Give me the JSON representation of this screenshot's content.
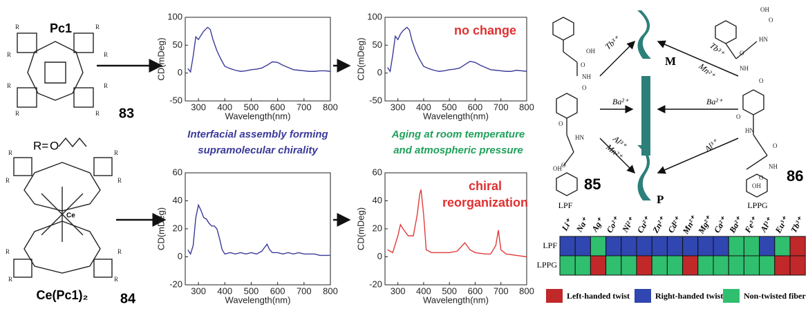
{
  "left": {
    "pc1_label": "Pc1",
    "pc1_number": "83",
    "r_prefix": "R=",
    "r_oxygen": "O",
    "pc1_substituents": [
      "R",
      "R",
      "R",
      "R",
      "R",
      "R",
      "R",
      "R"
    ],
    "ce_label": "Ce(Pc1)₂",
    "ce_number": "84",
    "ce_metal": "Ce",
    "ce_substituents": [
      "R",
      "R",
      "R",
      "R",
      "R",
      "R",
      "R",
      "R"
    ]
  },
  "captions": {
    "assembly": [
      "Interfacial assembly forming",
      "supramolecular chirality"
    ],
    "aging": [
      "Aging at room temperature",
      "and atmospheric pressure"
    ]
  },
  "chart_data": [
    {
      "type": "line",
      "x_label": "Wavelength(nm)",
      "y_label": "CD(mDeg)",
      "xlim": [
        250,
        800
      ],
      "xticks": [
        300,
        400,
        500,
        600,
        700,
        800
      ],
      "ylim": [
        -50,
        100
      ],
      "yticks": [
        -50,
        0,
        50,
        100
      ],
      "series": [
        {
          "color": "#3a3a9a",
          "x": [
            260,
            270,
            280,
            290,
            300,
            310,
            320,
            335,
            345,
            355,
            370,
            385,
            400,
            420,
            440,
            460,
            480,
            500,
            520,
            540,
            560,
            580,
            600,
            620,
            640,
            660,
            680,
            700,
            720,
            740,
            760,
            780,
            800
          ],
          "values": [
            8,
            2,
            30,
            65,
            60,
            68,
            75,
            82,
            78,
            60,
            40,
            25,
            12,
            8,
            5,
            3,
            4,
            6,
            7,
            9,
            14,
            20,
            19,
            14,
            10,
            6,
            5,
            4,
            3,
            3,
            4,
            4,
            3
          ]
        }
      ]
    },
    {
      "type": "line",
      "x_label": "Wavelength(nm)",
      "y_label": "CD(mDeg)",
      "xlim": [
        250,
        800
      ],
      "xticks": [
        300,
        400,
        500,
        600,
        700,
        800
      ],
      "ylim": [
        -50,
        100
      ],
      "yticks": [
        -50,
        0,
        50,
        100
      ],
      "annotation": [
        "no change"
      ],
      "series": [
        {
          "color": "#3a3a9a",
          "x": [
            260,
            270,
            280,
            290,
            300,
            310,
            320,
            335,
            345,
            355,
            370,
            385,
            400,
            420,
            440,
            460,
            480,
            500,
            520,
            540,
            560,
            580,
            600,
            620,
            640,
            660,
            680,
            700,
            720,
            740,
            760,
            780,
            800
          ],
          "values": [
            10,
            3,
            32,
            66,
            60,
            70,
            76,
            82,
            77,
            58,
            38,
            24,
            12,
            8,
            5,
            3,
            4,
            6,
            7,
            9,
            15,
            21,
            19,
            14,
            10,
            6,
            5,
            4,
            3,
            3,
            5,
            4,
            3
          ]
        }
      ]
    },
    {
      "type": "line",
      "x_label": "Wavelength(nm)",
      "y_label": "CD(mDeg)",
      "xlim": [
        250,
        800
      ],
      "xticks": [
        300,
        400,
        500,
        600,
        700,
        800
      ],
      "ylim": [
        -20,
        60
      ],
      "yticks": [
        -20,
        0,
        20,
        40,
        60
      ],
      "series": [
        {
          "color": "#3a3a9a",
          "x": [
            260,
            270,
            280,
            290,
            300,
            310,
            320,
            330,
            340,
            350,
            360,
            370,
            380,
            390,
            400,
            420,
            440,
            460,
            480,
            500,
            520,
            540,
            560,
            570,
            580,
            600,
            620,
            640,
            660,
            680,
            700,
            720,
            740,
            760,
            780,
            800
          ],
          "values": [
            5,
            2,
            8,
            28,
            37,
            33,
            28,
            27,
            24,
            22,
            22,
            20,
            13,
            5,
            2,
            3,
            2,
            3,
            2,
            3,
            2,
            4,
            9,
            5,
            3,
            3,
            2,
            3,
            2,
            3,
            2,
            2,
            2,
            1,
            1,
            1
          ]
        }
      ]
    },
    {
      "type": "line",
      "x_label": "Wavelength(nm)",
      "y_label": "CD(mDeg)",
      "xlim": [
        250,
        800
      ],
      "xticks": [
        300,
        400,
        500,
        600,
        700,
        800
      ],
      "ylim": [
        -20,
        60
      ],
      "yticks": [
        -20,
        0,
        20,
        40,
        60
      ],
      "annotation": [
        "chiral",
        "reorganization"
      ],
      "series": [
        {
          "color": "#e03a3a",
          "x": [
            260,
            280,
            300,
            310,
            320,
            340,
            360,
            375,
            385,
            390,
            400,
            410,
            430,
            460,
            500,
            530,
            560,
            580,
            600,
            640,
            660,
            680,
            690,
            700,
            720,
            760,
            800
          ],
          "values": [
            5,
            3,
            15,
            23,
            20,
            15,
            15,
            30,
            45,
            48,
            30,
            5,
            3,
            3,
            3,
            4,
            10,
            5,
            3,
            2,
            2,
            8,
            19,
            5,
            2,
            1,
            0
          ]
        }
      ]
    }
  ],
  "scheme": {
    "lpf_label": "LPF",
    "lpf_number": "85",
    "lppg_label": "LPPG",
    "lppg_number": "86",
    "m_label": "M",
    "p_label": "P",
    "left_ions": [
      "Tb³⁺",
      "Ba²⁺",
      "Al³⁺",
      "Mn²⁺"
    ],
    "right_ions": [
      "Tb³⁺",
      "Mn²⁺",
      "Ba²⁺",
      "Al³⁺"
    ],
    "lpf_atoms": [
      "OH",
      "O",
      "NH",
      "O",
      "O",
      "HN",
      "O",
      "OH"
    ],
    "lppg_atoms": [
      "OH",
      "O",
      "HN",
      "O",
      "NH",
      "O",
      "O",
      "HN",
      "O",
      "NH",
      "O",
      "OH"
    ]
  },
  "table": {
    "columns": [
      "Li⁺",
      "Na⁺",
      "Ag⁺",
      "Co²⁺",
      "Ni²⁺",
      "Cu²⁺",
      "Zn²⁺",
      "Cd²⁺",
      "Mn²⁺",
      "Mg²⁺",
      "Ca²⁺",
      "Ba²⁺",
      "Fe³⁺",
      "Al³⁺",
      "Eu³⁺",
      "Tb³⁺"
    ],
    "rows": [
      {
        "label": "LPF",
        "colors": [
          "#3046b0",
          "#3046b0",
          "#2fbf6e",
          "#3046b0",
          "#3046b0",
          "#3046b0",
          "#3046b0",
          "#3046b0",
          "#3046b0",
          "#3046b0",
          "#3046b0",
          "#2fbf6e",
          "#2fbf6e",
          "#3046b0",
          "#2fbf6e",
          "#c0282a"
        ]
      },
      {
        "label": "LPPG",
        "colors": [
          "#2fbf6e",
          "#2fbf6e",
          "#c0282a",
          "#2fbf6e",
          "#2fbf6e",
          "#c0282a",
          "#2fbf6e",
          "#2fbf6e",
          "#c0282a",
          "#2fbf6e",
          "#2fbf6e",
          "#2fbf6e",
          "#2fbf6e",
          "#2fbf6e",
          "#c0282a",
          "#c0282a"
        ]
      }
    ],
    "legend": [
      {
        "label": "Left-handed twist",
        "color": "#c0282a"
      },
      {
        "label": "Right-handed twist",
        "color": "#3046b0"
      },
      {
        "label": "Non-twisted fiber",
        "color": "#2fbf6e"
      }
    ]
  }
}
